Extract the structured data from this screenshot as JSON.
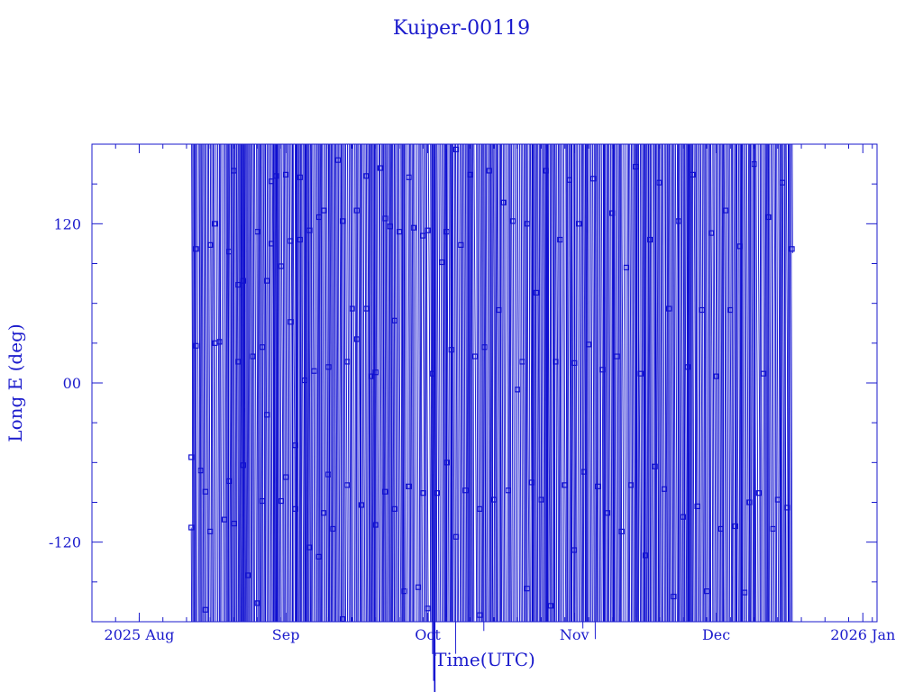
{
  "chart_data": {
    "type": "scatter",
    "title": "Kuiper-00119",
    "xlabel": "Time(UTC)",
    "ylabel": "Long E (deg)",
    "x_range": [
      "2025-07-22",
      "2026-01-04"
    ],
    "ylim": [
      -180,
      180
    ],
    "grid": false,
    "colors": {
      "axis": "#1a1acc",
      "series": "#1010d0"
    },
    "x_ticks": [
      {
        "date": "2025-08-01",
        "label": "2025 Aug"
      },
      {
        "date": "2025-09-01",
        "label": "Sep"
      },
      {
        "date": "2025-10-01",
        "label": "Oct"
      },
      {
        "date": "2025-11-01",
        "label": "Nov"
      },
      {
        "date": "2025-12-01",
        "label": "Dec"
      },
      {
        "date": "2026-01-01",
        "label": "2026 Jan"
      }
    ],
    "y_ticks": [
      {
        "value": 120,
        "label": "120"
      },
      {
        "value": 0,
        "label": "00"
      },
      {
        "value": -120,
        "label": "-120"
      }
    ],
    "data_start": "2025-08-12",
    "data_end": "2025-12-17",
    "series": [
      {
        "points": [
          {
            "x": "2025-08-12",
            "y": -109
          },
          {
            "x": "2025-08-12",
            "y": -56
          },
          {
            "x": "2025-08-13",
            "y": 28
          },
          {
            "x": "2025-08-13",
            "y": 101
          },
          {
            "x": "2025-08-14",
            "y": -66
          },
          {
            "x": "2025-08-15",
            "y": -82
          },
          {
            "x": "2025-08-15",
            "y": -171
          },
          {
            "x": "2025-08-16",
            "y": -112
          },
          {
            "x": "2025-08-16",
            "y": 104
          },
          {
            "x": "2025-08-17",
            "y": 30
          },
          {
            "x": "2025-08-17",
            "y": 120
          },
          {
            "x": "2025-08-18",
            "y": 31
          },
          {
            "x": "2025-08-19",
            "y": -103
          },
          {
            "x": "2025-08-20",
            "y": -74
          },
          {
            "x": "2025-08-20",
            "y": 99
          },
          {
            "x": "2025-08-21",
            "y": -106
          },
          {
            "x": "2025-08-21",
            "y": 160
          },
          {
            "x": "2025-08-22",
            "y": 16
          },
          {
            "x": "2025-08-22",
            "y": 74
          },
          {
            "x": "2025-08-23",
            "y": -62
          },
          {
            "x": "2025-08-23",
            "y": 77
          },
          {
            "x": "2025-08-24",
            "y": -145
          },
          {
            "x": "2025-08-25",
            "y": 20
          },
          {
            "x": "2025-08-26",
            "y": 114
          },
          {
            "x": "2025-08-26",
            "y": -166
          },
          {
            "x": "2025-08-27",
            "y": -89
          },
          {
            "x": "2025-08-27",
            "y": 27
          },
          {
            "x": "2025-08-28",
            "y": 77
          },
          {
            "x": "2025-08-28",
            "y": -24
          },
          {
            "x": "2025-08-29",
            "y": 105
          },
          {
            "x": "2025-08-29",
            "y": 152
          },
          {
            "x": "2025-08-30",
            "y": 156
          },
          {
            "x": "2025-08-31",
            "y": -89
          },
          {
            "x": "2025-08-31",
            "y": 88
          },
          {
            "x": "2025-09-01",
            "y": 157
          },
          {
            "x": "2025-09-01",
            "y": -71
          },
          {
            "x": "2025-09-02",
            "y": 46
          },
          {
            "x": "2025-09-02",
            "y": 107
          },
          {
            "x": "2025-09-03",
            "y": -95
          },
          {
            "x": "2025-09-03",
            "y": -47
          },
          {
            "x": "2025-09-04",
            "y": 108
          },
          {
            "x": "2025-09-04",
            "y": 155
          },
          {
            "x": "2025-09-05",
            "y": 2
          },
          {
            "x": "2025-09-06",
            "y": -124
          },
          {
            "x": "2025-09-06",
            "y": 115
          },
          {
            "x": "2025-09-07",
            "y": 9
          },
          {
            "x": "2025-09-08",
            "y": -131
          },
          {
            "x": "2025-09-08",
            "y": 125
          },
          {
            "x": "2025-09-09",
            "y": -98
          },
          {
            "x": "2025-09-09",
            "y": 130
          },
          {
            "x": "2025-09-10",
            "y": -69
          },
          {
            "x": "2025-09-10",
            "y": 12
          },
          {
            "x": "2025-09-11",
            "y": -110
          },
          {
            "x": "2025-09-12",
            "y": 168
          },
          {
            "x": "2025-09-13",
            "y": 122
          },
          {
            "x": "2025-09-13",
            "y": -178
          },
          {
            "x": "2025-09-14",
            "y": 16
          },
          {
            "x": "2025-09-14",
            "y": -77
          },
          {
            "x": "2025-09-15",
            "y": 56
          },
          {
            "x": "2025-09-16",
            "y": 33
          },
          {
            "x": "2025-09-16",
            "y": 130
          },
          {
            "x": "2025-09-17",
            "y": -92
          },
          {
            "x": "2025-09-18",
            "y": 56
          },
          {
            "x": "2025-09-18",
            "y": 156
          },
          {
            "x": "2025-09-19",
            "y": 5
          },
          {
            "x": "2025-09-20",
            "y": 8
          },
          {
            "x": "2025-09-20",
            "y": -107
          },
          {
            "x": "2025-09-21",
            "y": 162
          },
          {
            "x": "2025-09-22",
            "y": 124
          },
          {
            "x": "2025-09-22",
            "y": -82
          },
          {
            "x": "2025-09-23",
            "y": 118
          },
          {
            "x": "2025-09-24",
            "y": -95
          },
          {
            "x": "2025-09-24",
            "y": 47
          },
          {
            "x": "2025-09-25",
            "y": 114
          },
          {
            "x": "2025-09-26",
            "y": -157
          },
          {
            "x": "2025-09-27",
            "y": 155
          },
          {
            "x": "2025-09-27",
            "y": -78
          },
          {
            "x": "2025-09-28",
            "y": 117
          },
          {
            "x": "2025-09-29",
            "y": -154
          },
          {
            "x": "2025-09-30",
            "y": 111
          },
          {
            "x": "2025-09-30",
            "y": -83
          },
          {
            "x": "2025-10-01",
            "y": 115
          },
          {
            "x": "2025-10-01",
            "y": -170
          },
          {
            "x": "2025-10-02",
            "y": 7
          },
          {
            "x": "2025-10-03",
            "y": -83
          },
          {
            "x": "2025-10-04",
            "y": 91
          },
          {
            "x": "2025-10-05",
            "y": 114
          },
          {
            "x": "2025-10-05",
            "y": -60
          },
          {
            "x": "2025-10-06",
            "y": 25
          },
          {
            "x": "2025-10-07",
            "y": -116
          },
          {
            "x": "2025-10-07",
            "y": 176
          },
          {
            "x": "2025-10-08",
            "y": 104
          },
          {
            "x": "2025-10-09",
            "y": -81
          },
          {
            "x": "2025-10-10",
            "y": 157
          },
          {
            "x": "2025-10-11",
            "y": 20
          },
          {
            "x": "2025-10-12",
            "y": -175
          },
          {
            "x": "2025-10-12",
            "y": -95
          },
          {
            "x": "2025-10-13",
            "y": 27
          },
          {
            "x": "2025-10-14",
            "y": 160
          },
          {
            "x": "2025-10-15",
            "y": -88
          },
          {
            "x": "2025-10-16",
            "y": 55
          },
          {
            "x": "2025-10-17",
            "y": 136
          },
          {
            "x": "2025-10-18",
            "y": -81
          },
          {
            "x": "2025-10-19",
            "y": 122
          },
          {
            "x": "2025-10-20",
            "y": -5
          },
          {
            "x": "2025-10-21",
            "y": 16
          },
          {
            "x": "2025-10-22",
            "y": -155
          },
          {
            "x": "2025-10-22",
            "y": 120
          },
          {
            "x": "2025-10-23",
            "y": -75
          },
          {
            "x": "2025-10-24",
            "y": 68
          },
          {
            "x": "2025-10-25",
            "y": -88
          },
          {
            "x": "2025-10-26",
            "y": 160
          },
          {
            "x": "2025-10-27",
            "y": -168
          },
          {
            "x": "2025-10-28",
            "y": 16
          },
          {
            "x": "2025-10-29",
            "y": 108
          },
          {
            "x": "2025-10-30",
            "y": -77
          },
          {
            "x": "2025-10-31",
            "y": 153
          },
          {
            "x": "2025-11-01",
            "y": 15
          },
          {
            "x": "2025-11-01",
            "y": -126
          },
          {
            "x": "2025-11-02",
            "y": 120
          },
          {
            "x": "2025-11-03",
            "y": -67
          },
          {
            "x": "2025-11-04",
            "y": 29
          },
          {
            "x": "2025-11-05",
            "y": 154
          },
          {
            "x": "2025-11-06",
            "y": -78
          },
          {
            "x": "2025-11-07",
            "y": 10
          },
          {
            "x": "2025-11-08",
            "y": -98
          },
          {
            "x": "2025-11-09",
            "y": 128
          },
          {
            "x": "2025-11-10",
            "y": 20
          },
          {
            "x": "2025-11-11",
            "y": -112
          },
          {
            "x": "2025-11-12",
            "y": 87
          },
          {
            "x": "2025-11-13",
            "y": -77
          },
          {
            "x": "2025-11-14",
            "y": 163
          },
          {
            "x": "2025-11-15",
            "y": 7
          },
          {
            "x": "2025-11-16",
            "y": -130
          },
          {
            "x": "2025-11-17",
            "y": 108
          },
          {
            "x": "2025-11-18",
            "y": -63
          },
          {
            "x": "2025-11-19",
            "y": 151
          },
          {
            "x": "2025-11-20",
            "y": -80
          },
          {
            "x": "2025-11-21",
            "y": 56
          },
          {
            "x": "2025-11-22",
            "y": -161
          },
          {
            "x": "2025-11-23",
            "y": 122
          },
          {
            "x": "2025-11-24",
            "y": -101
          },
          {
            "x": "2025-11-25",
            "y": 12
          },
          {
            "x": "2025-11-26",
            "y": 157
          },
          {
            "x": "2025-11-27",
            "y": -93
          },
          {
            "x": "2025-11-28",
            "y": 55
          },
          {
            "x": "2025-11-29",
            "y": -157
          },
          {
            "x": "2025-11-30",
            "y": 113
          },
          {
            "x": "2025-12-01",
            "y": 5
          },
          {
            "x": "2025-12-02",
            "y": -110
          },
          {
            "x": "2025-12-03",
            "y": 130
          },
          {
            "x": "2025-12-04",
            "y": 55
          },
          {
            "x": "2025-12-05",
            "y": -108
          },
          {
            "x": "2025-12-06",
            "y": 103
          },
          {
            "x": "2025-12-07",
            "y": -158
          },
          {
            "x": "2025-12-08",
            "y": -90
          },
          {
            "x": "2025-12-09",
            "y": 165
          },
          {
            "x": "2025-12-10",
            "y": -83
          },
          {
            "x": "2025-12-11",
            "y": 7
          },
          {
            "x": "2025-12-12",
            "y": 125
          },
          {
            "x": "2025-12-13",
            "y": -110
          },
          {
            "x": "2025-12-14",
            "y": -88
          },
          {
            "x": "2025-12-15",
            "y": 151
          },
          {
            "x": "2025-12-16",
            "y": -94
          },
          {
            "x": "2025-12-17",
            "y": 101
          }
        ]
      }
    ]
  }
}
